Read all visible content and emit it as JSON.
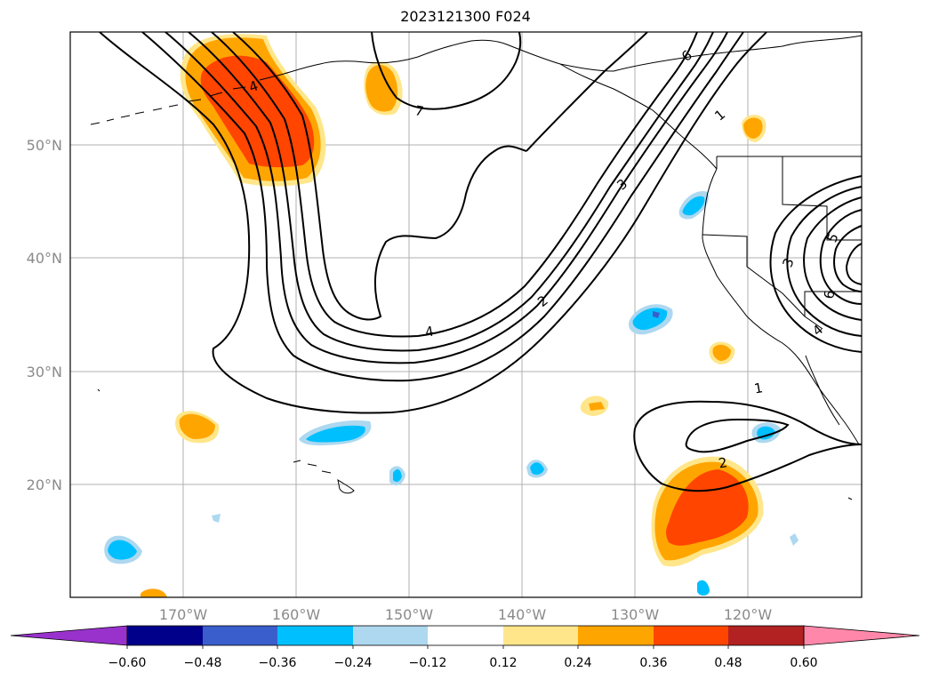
{
  "title": "2023121300 F024",
  "map": {
    "lon_range": [
      -180,
      -110
    ],
    "lat_range": [
      10,
      60
    ],
    "gridlines": true,
    "lon_ticks": [
      "170°W",
      "160°W",
      "150°W",
      "140°W",
      "130°W",
      "120°W"
    ],
    "lat_ticks": [
      "50°N",
      "40°N",
      "30°N",
      "20°N"
    ],
    "contour_labels": [
      "7",
      "6",
      "4",
      "1",
      "3",
      "2",
      "4",
      "1",
      "2",
      "3",
      "5",
      "6",
      "4"
    ]
  },
  "colorbar": {
    "ticks": [
      "−0.60",
      "−0.48",
      "−0.36",
      "−0.24",
      "−0.12",
      "0.12",
      "0.24",
      "0.36",
      "0.48",
      "0.60"
    ],
    "colors": [
      "#9932cc",
      "#00008b",
      "#3a5fcd",
      "#00bfff",
      "#add8f0",
      "#ffffff",
      "#ffe68a",
      "#ffa500",
      "#ff4500",
      "#b22222",
      "#ff88aa"
    ]
  },
  "shading": {
    "orange": "#ffa500",
    "red_orange": "#ff4500",
    "light_yellow": "#ffe68a",
    "cyan": "#00bfff",
    "light_blue": "#add8f0"
  }
}
